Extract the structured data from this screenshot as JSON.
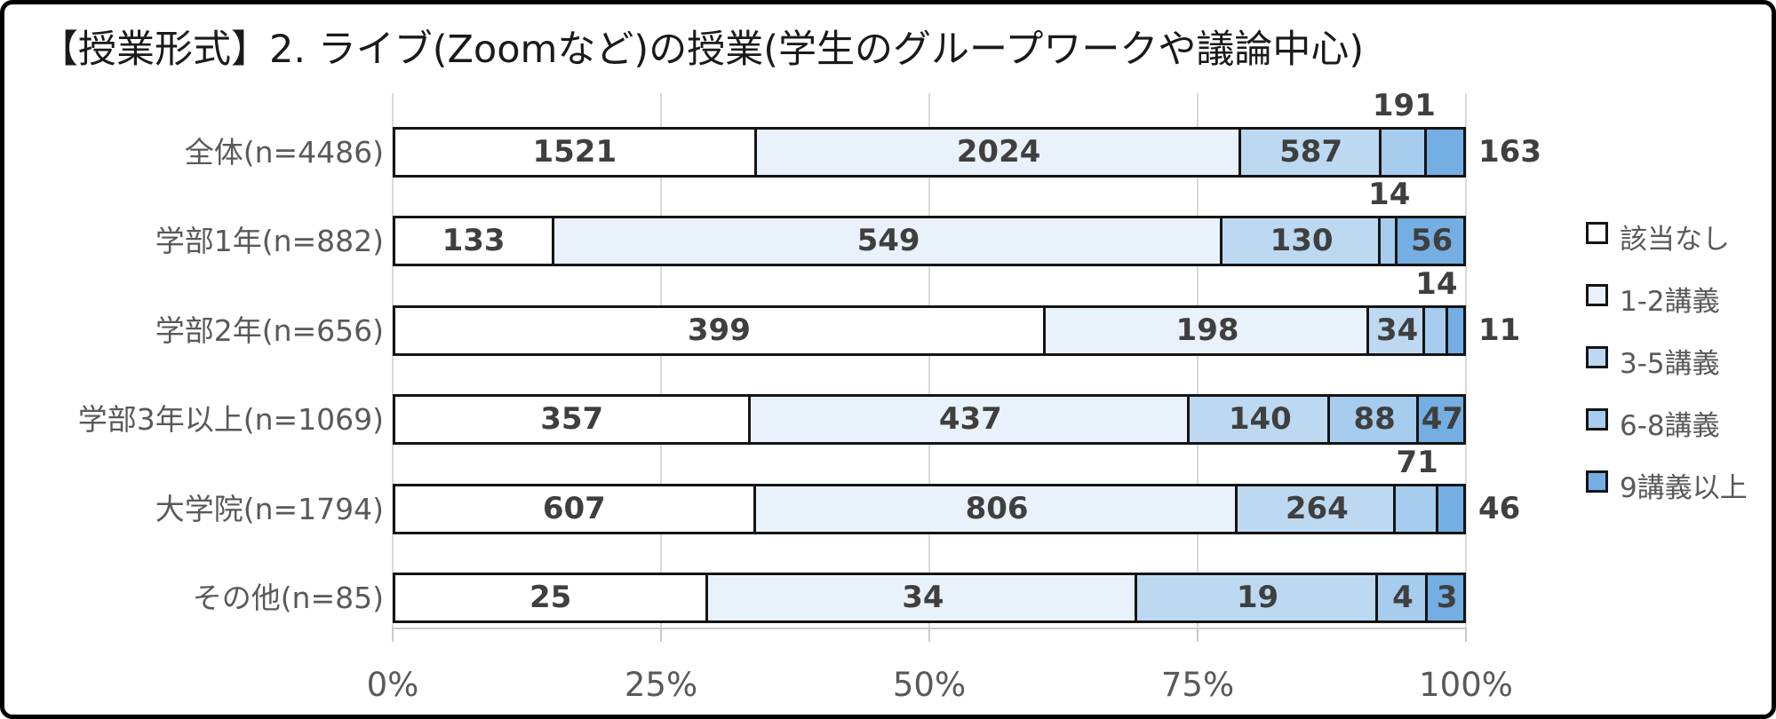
{
  "chart_data": {
    "type": "bar",
    "subtype": "horizontal-100%-stacked",
    "title": "【授業形式】2. ライブ(Zoomなど)の授業(学生のグループワークや議論中心)",
    "categories": [
      "全体(n=4486)",
      "学部1年(n=882)",
      "学部2年(n=656)",
      "学部3年以上(n=1069)",
      "大学院(n=1794)",
      "その他(n=85)"
    ],
    "series": [
      {
        "name": "該当なし",
        "color": "#ffffff",
        "values": [
          1521,
          133,
          399,
          357,
          607,
          25
        ]
      },
      {
        "name": "1-2講義",
        "color": "#e9f2fa",
        "values": [
          2024,
          549,
          198,
          437,
          806,
          34
        ]
      },
      {
        "name": "3-5講義",
        "color": "#bdd9f1",
        "values": [
          587,
          130,
          34,
          140,
          264,
          19
        ]
      },
      {
        "name": "6-8講義",
        "color": "#a6ccee",
        "values": [
          191,
          14,
          14,
          88,
          71,
          4
        ]
      },
      {
        "name": "9講義以上",
        "color": "#74aee3",
        "values": [
          163,
          56,
          11,
          47,
          46,
          3
        ]
      }
    ],
    "x_ticks": [
      "0%",
      "25%",
      "50%",
      "75%",
      "100%"
    ],
    "xlim": [
      0,
      100
    ],
    "grid": true,
    "legend_position": "right",
    "colors": {
      "segment_border": "#141414",
      "gridline": "#d9d9d9",
      "axis": "#c9c9c9",
      "data_label": "#3f3f3f",
      "text_gray": "#595959",
      "title": "#1a1a1a"
    }
  }
}
